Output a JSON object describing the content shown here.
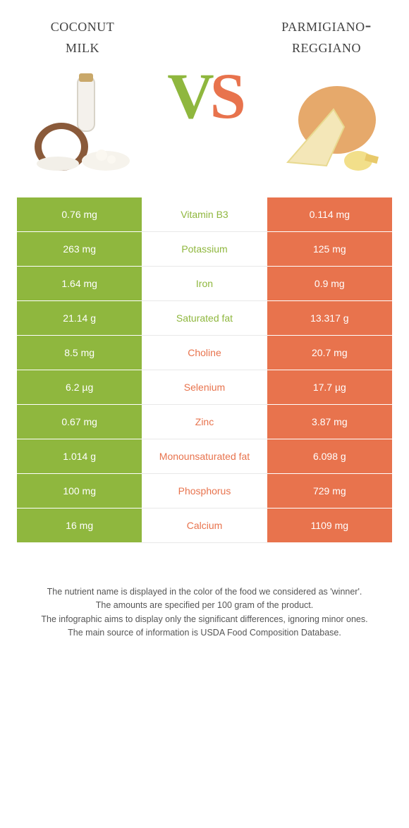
{
  "colors": {
    "left": "#8fb73e",
    "right": "#e8734d",
    "vs_v": "#8fb73e",
    "vs_s": "#e8734d",
    "title": "#424242",
    "footer": "#555555",
    "row_border": "#ffffff",
    "mid_border": "#e8e8e8",
    "background": "#ffffff"
  },
  "left_food": {
    "title": "Coconut\nmilk"
  },
  "right_food": {
    "title": "Parmigiano-\nReggiano"
  },
  "vs": {
    "v": "V",
    "s": "S"
  },
  "rows": [
    {
      "left": "0.76 mg",
      "label": "Vitamin B3",
      "right": "0.114 mg",
      "winner": "left"
    },
    {
      "left": "263 mg",
      "label": "Potassium",
      "right": "125 mg",
      "winner": "left"
    },
    {
      "left": "1.64 mg",
      "label": "Iron",
      "right": "0.9 mg",
      "winner": "left"
    },
    {
      "left": "21.14 g",
      "label": "Saturated fat",
      "right": "13.317 g",
      "winner": "left"
    },
    {
      "left": "8.5 mg",
      "label": "Choline",
      "right": "20.7 mg",
      "winner": "right"
    },
    {
      "left": "6.2 µg",
      "label": "Selenium",
      "right": "17.7 µg",
      "winner": "right"
    },
    {
      "left": "0.67 mg",
      "label": "Zinc",
      "right": "3.87 mg",
      "winner": "right"
    },
    {
      "left": "1.014 g",
      "label": "Monounsaturated fat",
      "right": "6.098 g",
      "winner": "right"
    },
    {
      "left": "100 mg",
      "label": "Phosphorus",
      "right": "729 mg",
      "winner": "right"
    },
    {
      "left": "16 mg",
      "label": "Calcium",
      "right": "1109 mg",
      "winner": "right"
    }
  ],
  "footer": [
    "The nutrient name is displayed in the color of the food we considered as 'winner'.",
    "The amounts are specified per 100 gram of the product.",
    "The infographic aims to display only the significant differences, ignoring minor ones.",
    "The main source of information is USDA Food Composition Database."
  ]
}
